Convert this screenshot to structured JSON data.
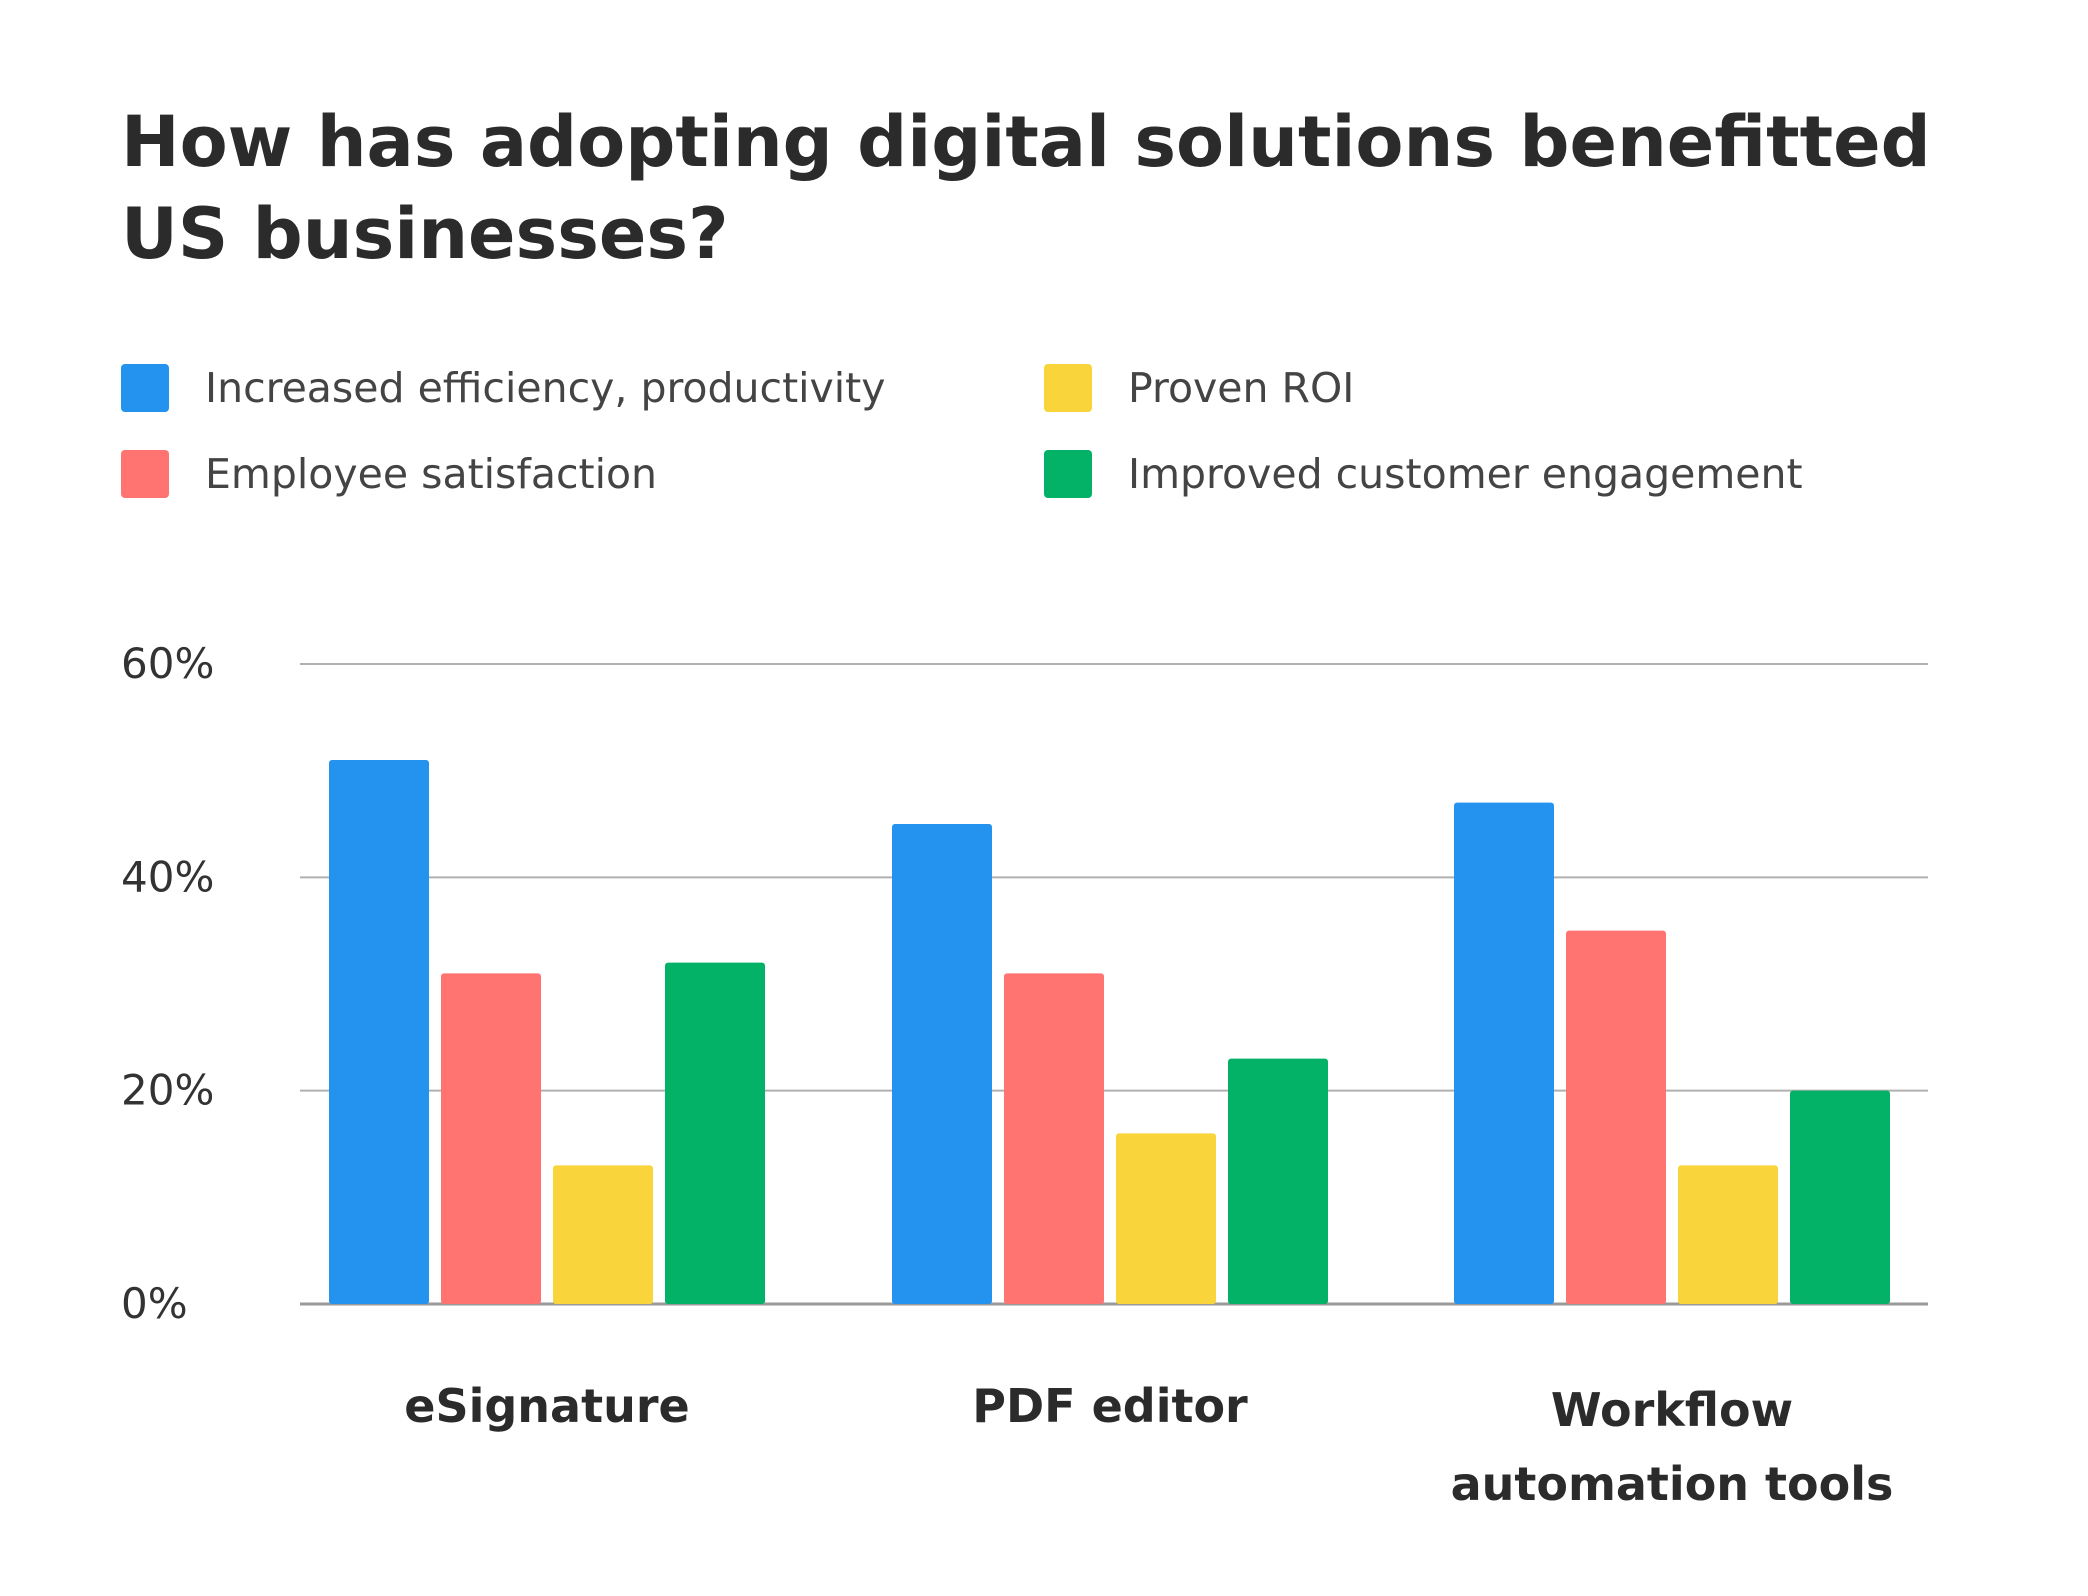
{
  "chart_data": {
    "type": "bar",
    "title": [
      "How has adopting digital solutions benefitted",
      "US businesses?"
    ],
    "xlabel": "",
    "ylabel": "",
    "ylim": [
      0,
      60
    ],
    "yticks": [
      0,
      20,
      40,
      60
    ],
    "ytick_suffix": "%",
    "grid": true,
    "legend_position": "top",
    "categories": [
      [
        "eSignature"
      ],
      [
        "PDF editor"
      ],
      [
        "Workflow",
        "automation tools"
      ]
    ],
    "series": [
      {
        "name": "Increased efficiency, productivity",
        "color": "#2393ef",
        "values": [
          51,
          45,
          47
        ]
      },
      {
        "name": "Employee satisfaction",
        "color": "#ff7371",
        "values": [
          31,
          31,
          35
        ]
      },
      {
        "name": "Proven ROI",
        "color": "#f9d43a",
        "values": [
          13,
          16,
          13
        ]
      },
      {
        "name": "Improved customer engagement",
        "color": "#03b167",
        "values": [
          32,
          23,
          20
        ]
      }
    ],
    "gridline_color": "#b0b0b0",
    "axis_color": "#9a9a9a"
  }
}
